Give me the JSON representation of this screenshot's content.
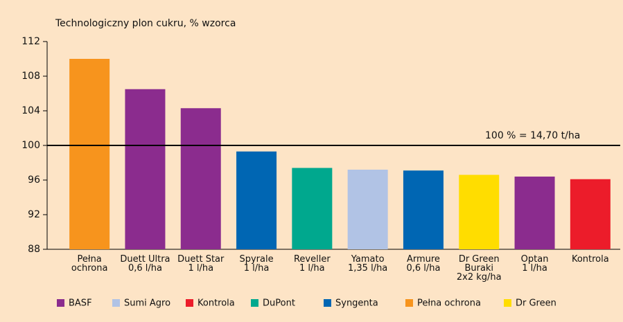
{
  "chart_data": {
    "type": "bar",
    "title": "Technologiczny plon cukru, % wzorca",
    "categories": [
      [
        "Pełna",
        "ochrona"
      ],
      [
        "Duett Ultra",
        "0,6 l/ha"
      ],
      [
        "Duett Star",
        "1 l/ha"
      ],
      [
        "Spyrale",
        "1 l/ha"
      ],
      [
        "Reveller",
        "1 l/ha"
      ],
      [
        "Yamato",
        "1,35 l/ha"
      ],
      [
        "Armure",
        "0,6 l/ha"
      ],
      [
        "Dr Green",
        "Buraki",
        "2x2 kg/ha"
      ],
      [
        "Optan",
        "1 l/ha"
      ],
      [
        "Kontrola"
      ]
    ],
    "values": [
      110,
      106.5,
      104.3,
      99.3,
      97.4,
      97.2,
      97.1,
      96.6,
      96.4,
      96.1
    ],
    "colors": [
      "#f7941d",
      "#8b2c8e",
      "#8b2c8e",
      "#0066b3",
      "#00a88e",
      "#b1c3e5",
      "#0066b3",
      "#ffdd00",
      "#8b2c8e",
      "#ec1c2a"
    ],
    "ylim": [
      88,
      112
    ],
    "yticks": [
      88,
      92,
      96,
      100,
      104,
      108,
      112
    ],
    "reference": {
      "value": 100,
      "label": "100 % = 14,70 t/ha"
    },
    "legend": [
      {
        "name": "BASF",
        "color": "#8b2c8e"
      },
      {
        "name": "Sumi Agro",
        "color": "#b1c3e5"
      },
      {
        "name": "Kontrola",
        "color": "#ec1c2a"
      },
      {
        "name": "DuPont",
        "color": "#00a88e"
      },
      {
        "name": "Syngenta",
        "color": "#0066b3"
      },
      {
        "name": "Pełna ochrona",
        "color": "#f7941d"
      },
      {
        "name": "Dr Green",
        "color": "#ffdd00"
      }
    ]
  }
}
